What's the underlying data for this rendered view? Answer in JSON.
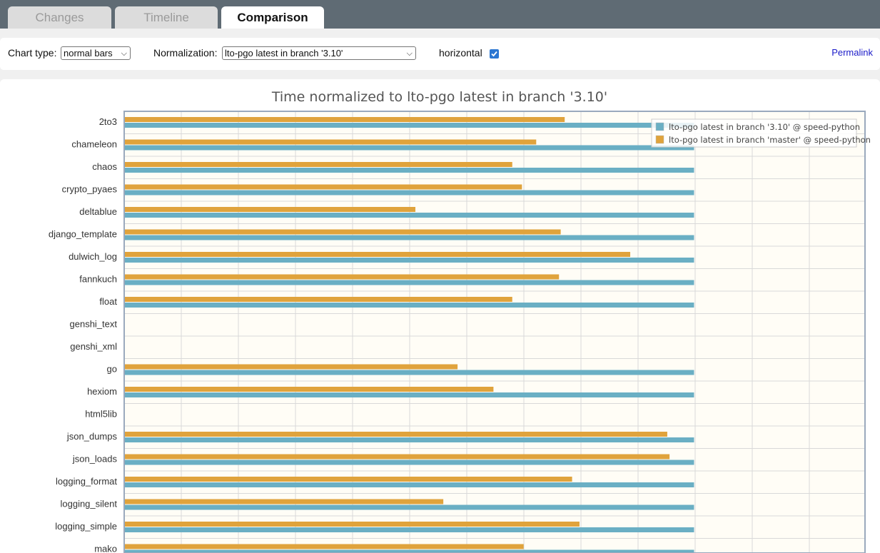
{
  "tabs": [
    {
      "label": "Changes",
      "active": false
    },
    {
      "label": "Timeline",
      "active": false
    },
    {
      "label": "Comparison",
      "active": true
    }
  ],
  "toolbar": {
    "chart_type_label": "Chart type:",
    "chart_type_value": "normal bars",
    "normalization_label": "Normalization:",
    "normalization_value": "lto-pgo latest in branch '3.10'",
    "horizontal_label": "horizontal",
    "horizontal_checked": true,
    "permalink_label": "Permalink"
  },
  "colors": {
    "series_1": "#6aafc4",
    "series_2": "#e0a33c",
    "plot_bg": "#fffdf6",
    "grid": "#d9d9d9",
    "accent": "#2a76d2"
  },
  "chart_data": {
    "type": "bar",
    "orientation": "horizontal",
    "title": "Time normalized to lto-pgo latest in branch '3.10'",
    "legend_position": "top-right",
    "categories": [
      "2to3",
      "chameleon",
      "chaos",
      "crypto_pyaes",
      "deltablue",
      "django_template",
      "dulwich_log",
      "fannkuch",
      "float",
      "genshi_text",
      "genshi_xml",
      "go",
      "hexiom",
      "html5lib",
      "json_dumps",
      "json_loads",
      "logging_format",
      "logging_silent",
      "logging_simple",
      "mako"
    ],
    "series": [
      {
        "name": "lto-pgo latest in branch '3.10' @ speed-python",
        "values": [
          1,
          1,
          1,
          1,
          1,
          1,
          1,
          1,
          1,
          null,
          null,
          1,
          1,
          null,
          1,
          1,
          1,
          1,
          1,
          1
        ]
      },
      {
        "name": "lto-pgo latest in branch 'master' @ speed-python",
        "values": [
          0.773,
          0.723,
          0.681,
          0.698,
          0.511,
          0.766,
          0.888,
          0.763,
          0.681,
          null,
          null,
          0.585,
          0.648,
          null,
          0.953,
          0.957,
          0.786,
          0.56,
          0.799,
          0.701
        ]
      }
    ],
    "xlim": [
      0,
      1.3
    ],
    "grid": true
  }
}
